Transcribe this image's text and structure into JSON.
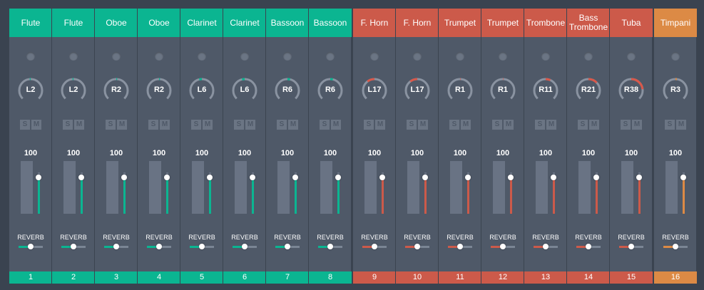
{
  "colors": {
    "woodwind": "#0bb591",
    "brass": "#cc5a4a",
    "percussion": "#dc8a45",
    "knob_track": "#8a93a1",
    "knob_fill_woodwind": "#0bb591",
    "knob_fill_brass": "#d9584a",
    "knob_fill_percussion": "#dc8a45"
  },
  "controls": {
    "solo_label": "S",
    "mute_label": "M",
    "reverb_label": "REVERB"
  },
  "channels": [
    {
      "number": "1",
      "name": "Flute",
      "group": "woodwind",
      "pan": "L2",
      "pan_value": -2,
      "volume": "100",
      "fader_level": 0.88,
      "reverb_level": 0.5
    },
    {
      "number": "2",
      "name": "Flute",
      "group": "woodwind",
      "pan": "L2",
      "pan_value": -2,
      "volume": "100",
      "fader_level": 0.88,
      "reverb_level": 0.5
    },
    {
      "number": "3",
      "name": "Oboe",
      "group": "woodwind",
      "pan": "R2",
      "pan_value": 2,
      "volume": "100",
      "fader_level": 0.88,
      "reverb_level": 0.5
    },
    {
      "number": "4",
      "name": "Oboe",
      "group": "woodwind",
      "pan": "R2",
      "pan_value": 2,
      "volume": "100",
      "fader_level": 0.88,
      "reverb_level": 0.5
    },
    {
      "number": "5",
      "name": "Clarinet",
      "group": "woodwind",
      "pan": "L6",
      "pan_value": -6,
      "volume": "100",
      "fader_level": 0.88,
      "reverb_level": 0.5
    },
    {
      "number": "6",
      "name": "Clarinet",
      "group": "woodwind",
      "pan": "L6",
      "pan_value": -6,
      "volume": "100",
      "fader_level": 0.88,
      "reverb_level": 0.5
    },
    {
      "number": "7",
      "name": "Bassoon",
      "group": "woodwind",
      "pan": "R6",
      "pan_value": 6,
      "volume": "100",
      "fader_level": 0.88,
      "reverb_level": 0.5
    },
    {
      "number": "8",
      "name": "Bassoon",
      "group": "woodwind",
      "pan": "R6",
      "pan_value": 6,
      "volume": "100",
      "fader_level": 0.88,
      "reverb_level": 0.5
    },
    {
      "number": "9",
      "name": "F. Horn",
      "group": "brass",
      "pan": "L17",
      "pan_value": -17,
      "volume": "100",
      "fader_level": 0.88,
      "reverb_level": 0.5
    },
    {
      "number": "10",
      "name": "F. Horn",
      "group": "brass",
      "pan": "L17",
      "pan_value": -17,
      "volume": "100",
      "fader_level": 0.88,
      "reverb_level": 0.5
    },
    {
      "number": "11",
      "name": "Trumpet",
      "group": "brass",
      "pan": "R1",
      "pan_value": 1,
      "volume": "100",
      "fader_level": 0.88,
      "reverb_level": 0.5
    },
    {
      "number": "12",
      "name": "Trumpet",
      "group": "brass",
      "pan": "R1",
      "pan_value": 1,
      "volume": "100",
      "fader_level": 0.88,
      "reverb_level": 0.5
    },
    {
      "number": "13",
      "name": "Trombone",
      "group": "brass",
      "pan": "R11",
      "pan_value": 11,
      "volume": "100",
      "fader_level": 0.88,
      "reverb_level": 0.5
    },
    {
      "number": "14",
      "name": "Bass Trombone",
      "group": "brass",
      "pan": "R21",
      "pan_value": 21,
      "volume": "100",
      "fader_level": 0.88,
      "reverb_level": 0.5
    },
    {
      "number": "15",
      "name": "Tuba",
      "group": "brass",
      "pan": "R38",
      "pan_value": 38,
      "volume": "100",
      "fader_level": 0.88,
      "reverb_level": 0.5
    },
    {
      "number": "16",
      "name": "Timpani",
      "group": "percussion",
      "pan": "R3",
      "pan_value": 3,
      "volume": "100",
      "fader_level": 0.88,
      "reverb_level": 0.5
    }
  ]
}
